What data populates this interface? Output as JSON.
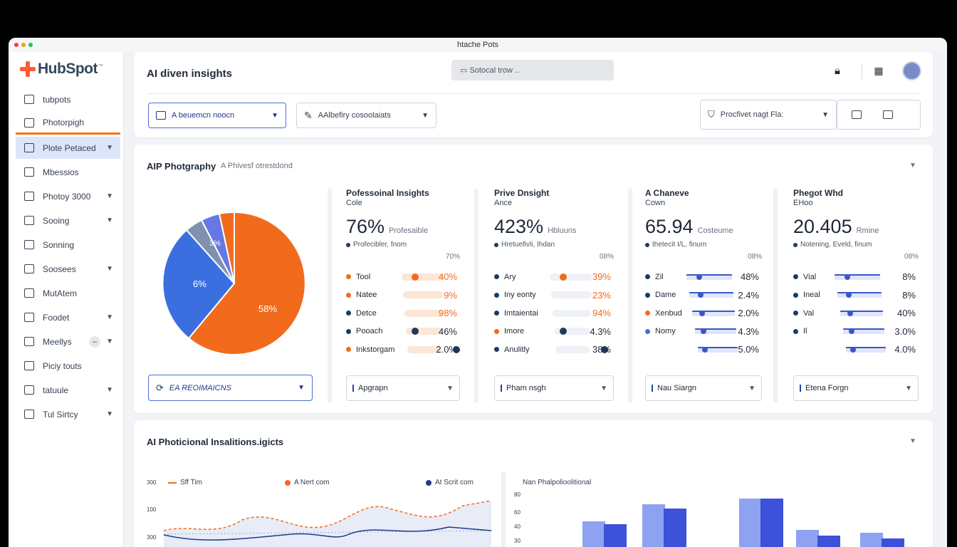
{
  "window": {
    "title": "htache Pots"
  },
  "logo": {
    "text": "HubSpot",
    "suffix": "™"
  },
  "sidebar": {
    "items": [
      {
        "label": "tubpots",
        "icon": "list-icon",
        "chevron": false
      },
      {
        "label": "Photorpigh",
        "icon": "user-icon",
        "chevron": false
      },
      {
        "label": "Plote Petaced",
        "icon": "grid-icon",
        "chevron": true
      },
      {
        "label": "Mbessios",
        "icon": "building-icon",
        "chevron": false
      },
      {
        "label": "Photoy 3000",
        "icon": "person-icon",
        "chevron": true
      },
      {
        "label": "Sooing",
        "icon": "monitor-icon",
        "chevron": true
      },
      {
        "label": "Sonning",
        "icon": "document-icon",
        "chevron": false
      },
      {
        "label": "Soosees",
        "icon": "people-icon",
        "chevron": true
      },
      {
        "label": "MutAtem",
        "icon": "target-icon",
        "chevron": false
      },
      {
        "label": "Foodet",
        "icon": "file-icon",
        "chevron": true
      },
      {
        "label": "Meellys",
        "icon": "house-icon",
        "chevron": true
      },
      {
        "label": "Piciy touts",
        "icon": "chart-icon",
        "chevron": false
      },
      {
        "label": "tatuule",
        "icon": "calendar-icon",
        "chevron": true
      },
      {
        "label": "Tul Sirtcy",
        "icon": "lock-icon",
        "chevron": true
      }
    ]
  },
  "header": {
    "title": "AI diven insights",
    "search_text": "Sotocal trow ..",
    "filter1": "A beuemcn noocn",
    "filter2": "AAlbefiry cosoolaiats",
    "filter3": "Procfivet nagt Fla:"
  },
  "section1": {
    "title": "AIP Photgraphy",
    "subtitle": "A Phivesf otrestdond",
    "pie_labels": [
      "6%",
      "58%",
      "3%"
    ],
    "bottom_dropdown": "EA REOIMAICNS",
    "kpis": [
      {
        "title": "Pofessoinal Insights",
        "title2": "Cole",
        "value": "76%",
        "unit": "Profesaible",
        "meta": "Profecibler, fnom",
        "pct": "70%",
        "rows": [
          {
            "label": "Tool",
            "value": "40%"
          },
          {
            "label": "Natee",
            "value": "9%"
          },
          {
            "label": "Detce",
            "value": "98%"
          },
          {
            "label": "Pooach",
            "value": "46%"
          },
          {
            "label": "Inkstorgam",
            "value": "2.0%"
          }
        ],
        "dropdown": "Apgrapn"
      },
      {
        "title": "Prive Dnsight",
        "title2": "Ance",
        "value": "423%",
        "unit": "Hbluuns",
        "meta": "Hretuefivli, Ihdan",
        "pct": "08%",
        "rows": [
          {
            "label": "Ary",
            "value": "39%"
          },
          {
            "label": "Iny eonty",
            "value": "23%"
          },
          {
            "label": "Imtaientai",
            "value": "94%"
          },
          {
            "label": "Imore",
            "value": "4.3%"
          },
          {
            "label": "Anulitly",
            "value": "38%"
          }
        ],
        "dropdown": "Pham nsgh"
      },
      {
        "title": "A Chaneve",
        "title2": "Cown",
        "value": "65.94",
        "unit": "Costeume",
        "meta": "thetecit I/L, finum",
        "pct": "08%",
        "rows": [
          {
            "label": "Zil",
            "value": "48%"
          },
          {
            "label": "Dame",
            "value": "2.4%"
          },
          {
            "label": "Xenbud",
            "value": "2.0%"
          },
          {
            "label": "Nomy",
            "value": "4.3%"
          },
          {
            "label": "",
            "value": "5.0%"
          }
        ],
        "dropdown": "Nau Siargn"
      },
      {
        "title": "Phegot Whd",
        "title2": "EHoo",
        "value": "20.405",
        "unit": "Rmine",
        "meta": "Notening, Eveld, finum",
        "pct": "08%",
        "rows": [
          {
            "label": "Vial",
            "value": "8%"
          },
          {
            "label": "Ineal",
            "value": "8%"
          },
          {
            "label": "Val",
            "value": "40%"
          },
          {
            "label": "Il",
            "value": "3.0%"
          },
          {
            "label": "",
            "value": "4.0%"
          }
        ],
        "dropdown": "Etena Forgn"
      }
    ]
  },
  "section2": {
    "title": "AI Photicional Insalitions.igicts",
    "legend": [
      "Sff Tim",
      "A Nert com",
      "At Scrit com"
    ],
    "y_ticks": [
      "300",
      "100",
      "300"
    ],
    "bar_chart_title": "Nan Phalpolioolitional",
    "bar_y_ticks": [
      "80",
      "60",
      "40",
      "30"
    ]
  },
  "colors": {
    "orange": "#f26b1d",
    "blue": "#3b6fe0",
    "navy": "#1e3a5f",
    "violet": "#5b6fe8"
  }
}
